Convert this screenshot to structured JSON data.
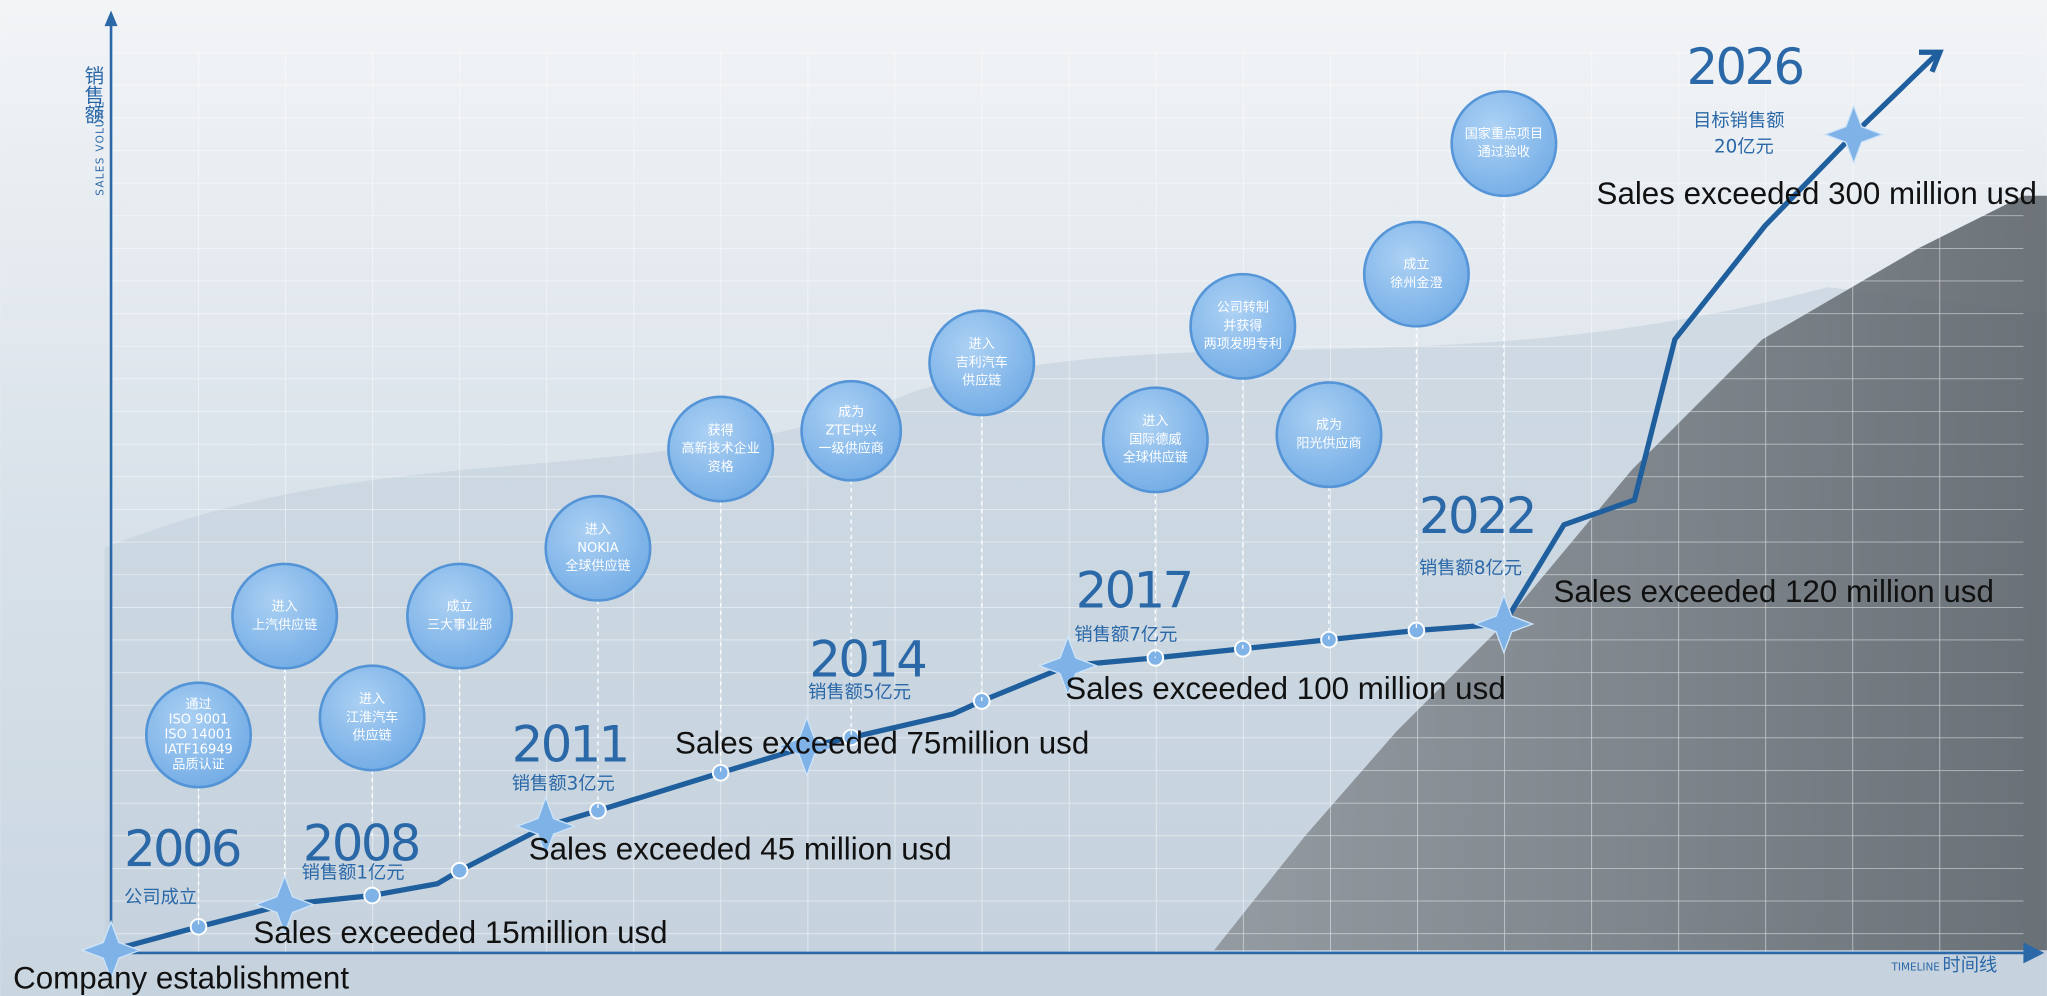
{
  "axis": {
    "y_label": "销售额",
    "y_sublabel": "SALES VOLUME",
    "x_sublabel": "TIMELINE",
    "x_label": "时间线"
  },
  "milestones": [
    {
      "year": "2006",
      "label": "公司成立",
      "english": "Company establishment"
    },
    {
      "year": "2008",
      "label": "销售额1亿元",
      "english": "Sales exceeded 15million  usd"
    },
    {
      "year": "2011",
      "label": "销售额3亿元",
      "english": "Sales exceeded 45 million usd"
    },
    {
      "year": "2014",
      "label": "销售额5亿元",
      "english": "Sales exceeded 75million usd"
    },
    {
      "year": "2017",
      "label": "销售额7亿元",
      "english": "Sales exceeded 100 million usd"
    },
    {
      "year": "2022",
      "label": "销售额8亿元",
      "english": "Sales exceeded 120 million usd"
    },
    {
      "year": "2026",
      "label": "目标销售额",
      "label2": "20亿元",
      "english": "Sales exceeded 300 million usd"
    }
  ],
  "events": [
    {
      "lines": [
        "通过",
        "ISO 9001",
        "ISO 14001",
        "IATF16949",
        "品质认证"
      ]
    },
    {
      "lines": [
        "进入",
        "上汽供应链"
      ]
    },
    {
      "lines": [
        "进入",
        "江淮汽车",
        "供应链"
      ]
    },
    {
      "lines": [
        "成立",
        "三大事业部"
      ]
    },
    {
      "lines": [
        "进入",
        "NOKIA",
        "全球供应链"
      ]
    },
    {
      "lines": [
        "获得",
        "高新技术企业",
        "资格"
      ]
    },
    {
      "lines": [
        "成为",
        "ZTE中兴",
        "一级供应商"
      ]
    },
    {
      "lines": [
        "进入",
        "吉利汽车",
        "供应链"
      ]
    },
    {
      "lines": [
        "进入",
        "国际德威",
        "全球供应链"
      ]
    },
    {
      "lines": [
        "公司转制",
        "并获得",
        "两项发明专利"
      ]
    },
    {
      "lines": [
        "成为",
        "阳光供应商"
      ]
    },
    {
      "lines": [
        "成立",
        "徐州金澄"
      ]
    },
    {
      "lines": [
        "国家重点项目",
        "通过验收"
      ]
    }
  ]
}
